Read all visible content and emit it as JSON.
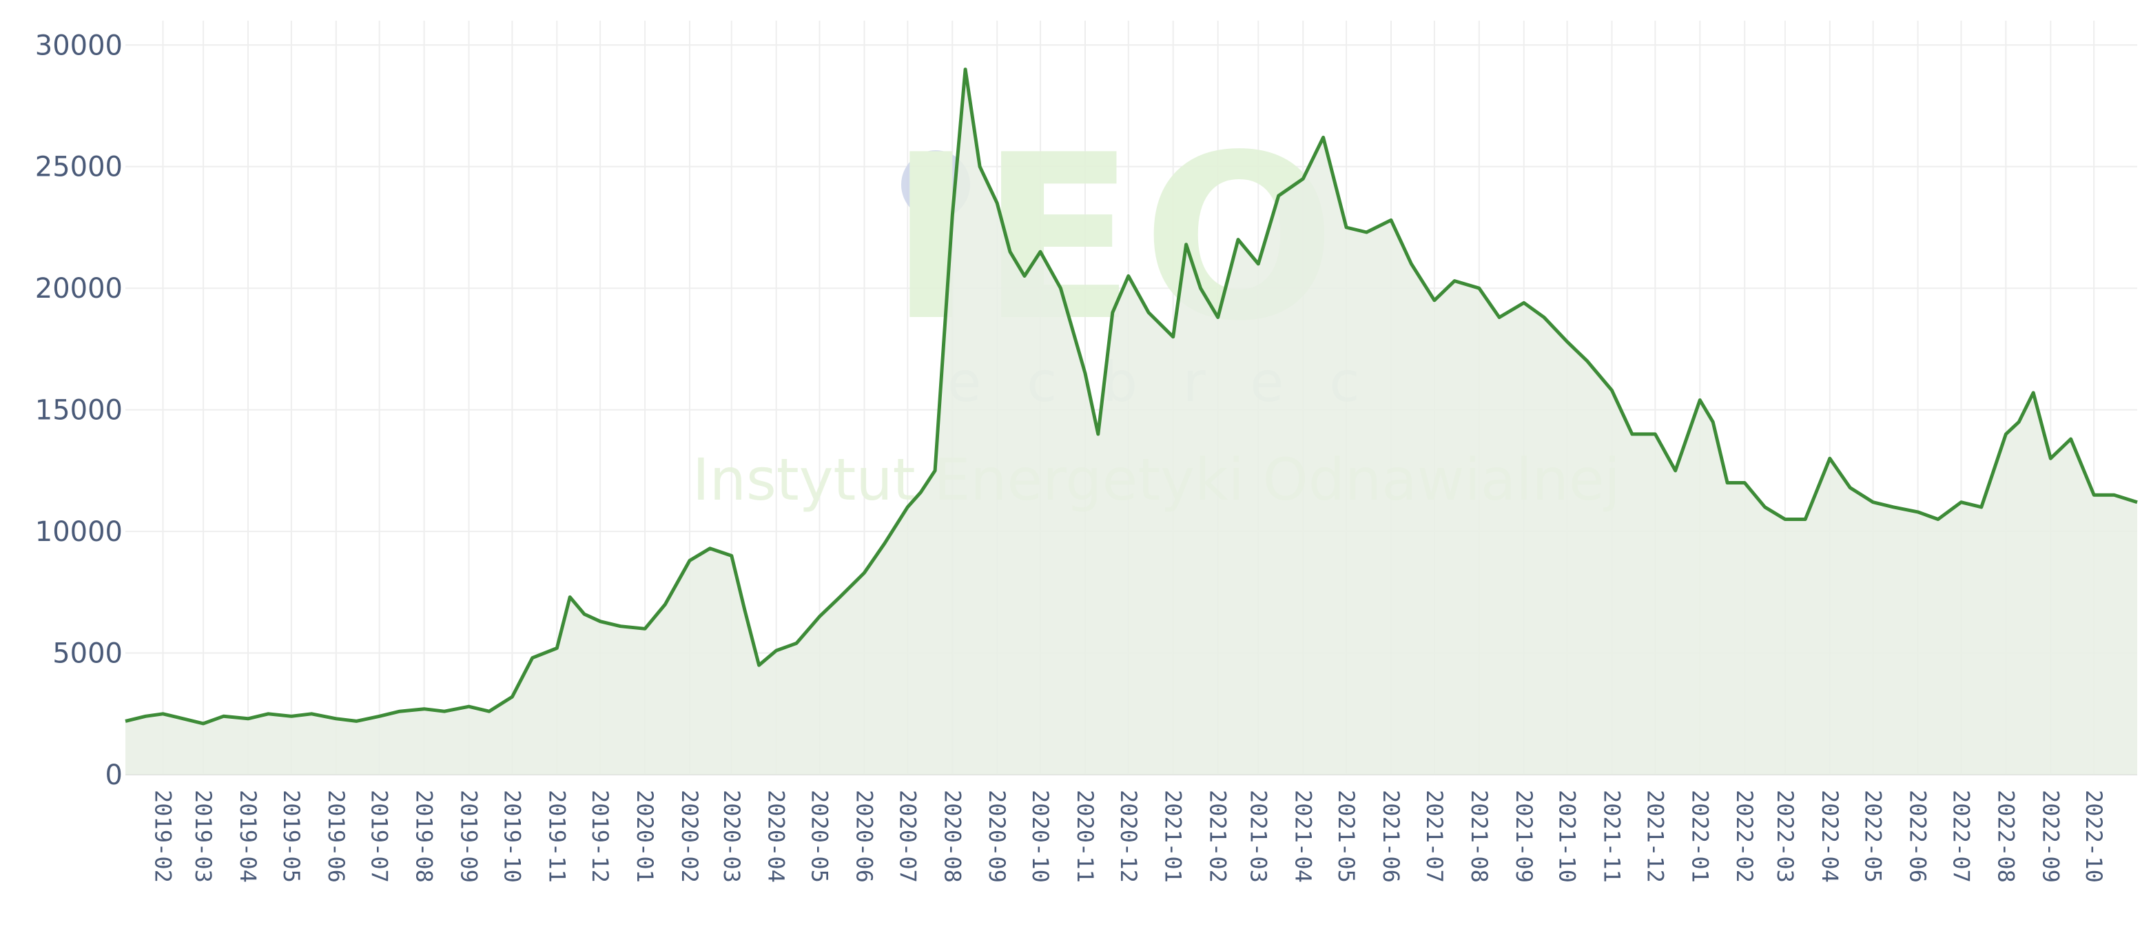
{
  "chart_data": {
    "type": "area",
    "title": "",
    "xlabel": "",
    "ylabel": "",
    "x_range": [
      "2019-01-06",
      "2022-10-31"
    ],
    "ylim": [
      0,
      31000
    ],
    "y_ticks": [
      0,
      5000,
      10000,
      15000,
      20000,
      25000,
      30000
    ],
    "x_ticks": [
      "2019-02",
      "2019-03",
      "2019-04",
      "2019-05",
      "2019-06",
      "2019-07",
      "2019-08",
      "2019-09",
      "2019-10",
      "2019-11",
      "2019-12",
      "2020-01",
      "2020-02",
      "2020-03",
      "2020-04",
      "2020-05",
      "2020-06",
      "2020-07",
      "2020-08",
      "2020-09",
      "2020-10",
      "2020-11",
      "2020-12",
      "2021-01",
      "2021-02",
      "2021-03",
      "2021-04",
      "2021-05",
      "2021-06",
      "2021-07",
      "2021-08",
      "2021-09",
      "2021-10",
      "2021-11",
      "2021-12",
      "2022-01",
      "2022-02",
      "2022-03",
      "2022-04",
      "2022-05",
      "2022-06",
      "2022-07",
      "2022-08",
      "2022-09",
      "2022-10"
    ],
    "grid": true,
    "legend": "none",
    "colors": {
      "line": "#3d8b37",
      "fill": "#e7efe4",
      "grid": "#eeeeee",
      "tick": "#4a5a78"
    },
    "series": [
      {
        "x": [
          "2019-01-06",
          "2019-01-20",
          "2019-02-01",
          "2019-02-15",
          "2019-03-01",
          "2019-03-15",
          "2019-04-01",
          "2019-04-15",
          "2019-05-01",
          "2019-05-15",
          "2019-06-01",
          "2019-06-15",
          "2019-07-01",
          "2019-07-15",
          "2019-08-01",
          "2019-08-15",
          "2019-09-01",
          "2019-09-15",
          "2019-10-01",
          "2019-10-15",
          "2019-11-01",
          "2019-11-10",
          "2019-11-20",
          "2019-12-01",
          "2019-12-15",
          "2020-01-01",
          "2020-01-15",
          "2020-02-01",
          "2020-02-15",
          "2020-03-01",
          "2020-03-10",
          "2020-03-20",
          "2020-04-01",
          "2020-04-15",
          "2020-05-01",
          "2020-05-15",
          "2020-06-01",
          "2020-06-15",
          "2020-07-01",
          "2020-07-10",
          "2020-07-20",
          "2020-08-01",
          "2020-08-10",
          "2020-08-20",
          "2020-09-01",
          "2020-09-10",
          "2020-09-20",
          "2020-10-01",
          "2020-10-15",
          "2020-11-01",
          "2020-11-10",
          "2020-11-20",
          "2020-12-01",
          "2020-12-15",
          "2021-01-01",
          "2021-01-10",
          "2021-01-20",
          "2021-02-01",
          "2021-02-15",
          "2021-03-01",
          "2021-03-15",
          "2021-04-01",
          "2021-04-15",
          "2021-05-01",
          "2021-05-15",
          "2021-06-01",
          "2021-06-15",
          "2021-07-01",
          "2021-07-15",
          "2021-08-01",
          "2021-08-15",
          "2021-09-01",
          "2021-09-15",
          "2021-10-01",
          "2021-10-15",
          "2021-11-01",
          "2021-11-15",
          "2021-12-01",
          "2021-12-15",
          "2022-01-01",
          "2022-01-10",
          "2022-01-20",
          "2022-02-01",
          "2022-02-15",
          "2022-03-01",
          "2022-03-15",
          "2022-04-01",
          "2022-04-15",
          "2022-05-01",
          "2022-05-15",
          "2022-06-01",
          "2022-06-15",
          "2022-07-01",
          "2022-07-15",
          "2022-08-01",
          "2022-08-10",
          "2022-08-20",
          "2022-09-01",
          "2022-09-15",
          "2022-10-01",
          "2022-10-15",
          "2022-10-31"
        ],
        "y": [
          2200,
          2400,
          2500,
          2300,
          2100,
          2400,
          2300,
          2500,
          2400,
          2500,
          2300,
          2200,
          2400,
          2600,
          2700,
          2600,
          2800,
          2600,
          3200,
          4800,
          5200,
          7300,
          6600,
          6300,
          6100,
          6000,
          7000,
          8800,
          9300,
          9000,
          6800,
          4500,
          5100,
          5400,
          6500,
          7300,
          8300,
          9500,
          11000,
          11600,
          12500,
          23000,
          29000,
          25000,
          23500,
          21500,
          20500,
          21500,
          20000,
          16500,
          14000,
          19000,
          20500,
          19000,
          18000,
          21800,
          20000,
          18800,
          22000,
          21000,
          23800,
          24500,
          26200,
          22500,
          22300,
          22800,
          21000,
          19500,
          20300,
          20000,
          18800,
          19400,
          18800,
          17800,
          17000,
          15800,
          14000,
          14000,
          12500,
          15400,
          14500,
          12000,
          12000,
          11000,
          10500,
          10500,
          13000,
          11800,
          11200,
          11000,
          10800,
          10500,
          11200,
          11000,
          14000,
          14500,
          15700,
          13000,
          13800,
          11500,
          11500,
          11200
        ]
      }
    ]
  },
  "watermark": {
    "logo_text": "IEO",
    "sub_text": "ecbrec",
    "institute_text": "Instytut Energetyki Odnawialnej",
    "color_main": "#e2f2d8",
    "color_sub": "#dfe5ec",
    "color_dot": "#cfd6ea"
  }
}
